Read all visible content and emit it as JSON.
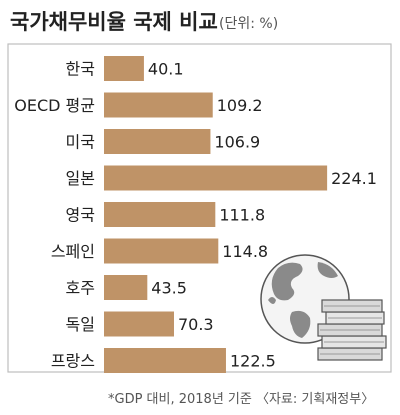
{
  "chart_data": {
    "type": "bar",
    "orientation": "horizontal",
    "title": "국가채무비율 국제 비교",
    "unit_note": "(단위: %)",
    "categories": [
      "한국",
      "OECD 평균",
      "미국",
      "일본",
      "영국",
      "스페인",
      "호주",
      "독일",
      "프랑스"
    ],
    "values": [
      40.1,
      109.2,
      106.9,
      224.1,
      111.8,
      114.8,
      43.5,
      70.3,
      122.5
    ],
    "value_labels": [
      "40.1",
      "109.2",
      "106.9",
      "224.1",
      "111.8",
      "114.8",
      "43.5",
      "70.3",
      "122.5"
    ],
    "xlim": [
      0,
      230
    ],
    "grid": false,
    "bar_color": "#bf9367",
    "footnote": "*GDP 대비, 2018년 기준 〈자료: 기획재정부〉"
  },
  "decorations": {
    "icons": [
      "globe-icon",
      "money-stack-icon"
    ]
  }
}
